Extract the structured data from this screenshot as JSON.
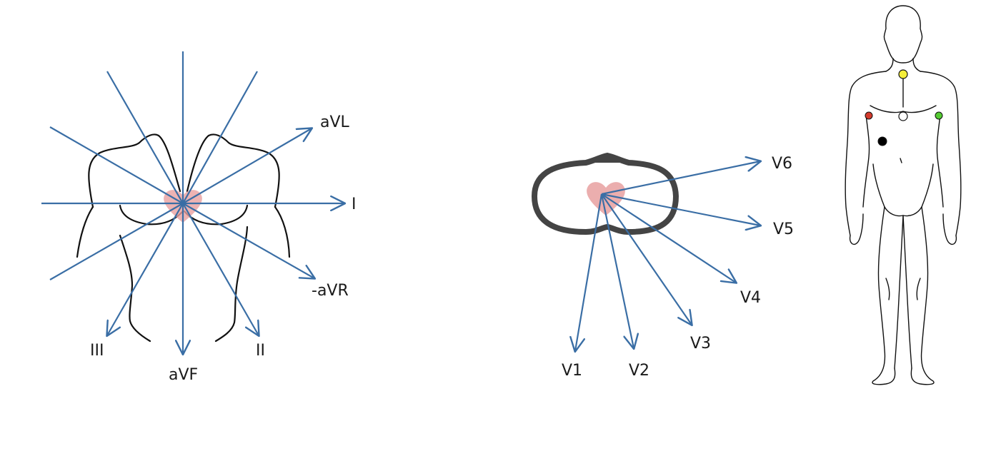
{
  "colors": {
    "axis": "#3a6ea5",
    "outline": "#111111",
    "heart": "#e8a0a0",
    "torso_ring": "#444444",
    "electrode_ra": "#d33a2c",
    "electrode_la": "#55cc33",
    "electrode_ll": "#000000",
    "electrode_ground": "#ffffff",
    "electrode_neck": "#f5ee3a"
  },
  "limb_leads": {
    "labels": {
      "I": "I",
      "aVL": "aVL",
      "neg_aVR": "-aVR",
      "II": "II",
      "aVF": "aVF",
      "III": "III"
    }
  },
  "chest_leads": {
    "labels": {
      "V1": "V1",
      "V2": "V2",
      "V3": "V3",
      "V4": "V4",
      "V5": "V5",
      "V6": "V6"
    }
  },
  "body_figure": {
    "electrodes": [
      "neck-yellow",
      "right-arm-red",
      "left-arm-green",
      "sternum-white",
      "chest-black"
    ]
  }
}
